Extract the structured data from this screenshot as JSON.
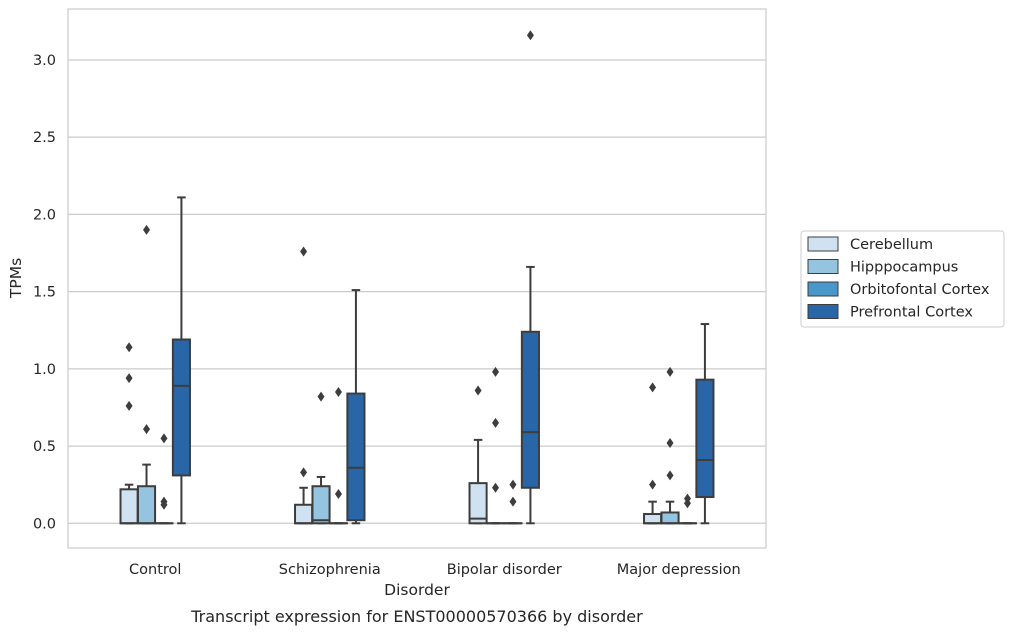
{
  "chart_data": {
    "type": "box",
    "xlabel": "Disorder",
    "ylabel": "TPMs",
    "caption": "Transcript expression for ENST00000570366 by disorder",
    "ylim": [
      -0.16,
      3.33
    ],
    "yticks": [
      0.0,
      0.5,
      1.0,
      1.5,
      2.0,
      2.5,
      3.0
    ],
    "ytick_labels": [
      "0.0",
      "0.5",
      "1.0",
      "1.5",
      "2.0",
      "2.5",
      "3.0"
    ],
    "grid": "horizontal",
    "legend_position": "right",
    "categories": [
      "Control",
      "Schizophrenia",
      "Bipolar disorder",
      "Major depression"
    ],
    "series": [
      {
        "name": "Cerebellum",
        "color": "#d0e1f2",
        "boxes": [
          {
            "q1": 0.0,
            "median": 0.0,
            "q3": 0.22,
            "whislo": 0.0,
            "whishi": 0.25,
            "fliers": [
              1.14,
              0.94,
              0.76
            ]
          },
          {
            "q1": 0.0,
            "median": 0.0,
            "q3": 0.12,
            "whislo": 0.0,
            "whishi": 0.23,
            "fliers": [
              1.76,
              0.33
            ]
          },
          {
            "q1": 0.0,
            "median": 0.03,
            "q3": 0.26,
            "whislo": 0.0,
            "whishi": 0.54,
            "fliers": [
              0.86
            ]
          },
          {
            "q1": 0.0,
            "median": 0.0,
            "q3": 0.06,
            "whislo": 0.0,
            "whishi": 0.14,
            "fliers": [
              0.88,
              0.25
            ]
          }
        ]
      },
      {
        "name": "Hipppocampus",
        "color": "#94c4df",
        "boxes": [
          {
            "q1": 0.0,
            "median": 0.0,
            "q3": 0.24,
            "whislo": 0.0,
            "whishi": 0.38,
            "fliers": [
              1.9,
              0.61
            ]
          },
          {
            "q1": 0.0,
            "median": 0.02,
            "q3": 0.24,
            "whislo": 0.0,
            "whishi": 0.3,
            "fliers": [
              0.82
            ]
          },
          {
            "q1": 0.0,
            "median": 0.0,
            "q3": 0.0,
            "whislo": 0.0,
            "whishi": 0.0,
            "fliers": [
              0.98,
              0.65,
              0.23
            ]
          },
          {
            "q1": 0.0,
            "median": 0.0,
            "q3": 0.07,
            "whislo": 0.0,
            "whishi": 0.14,
            "fliers": [
              0.98,
              0.52,
              0.31
            ]
          }
        ]
      },
      {
        "name": "Orbitofontal Cortex",
        "color": "#4a98c9",
        "boxes": [
          {
            "q1": 0.0,
            "median": 0.0,
            "q3": 0.0,
            "whislo": 0.0,
            "whishi": 0.0,
            "fliers": [
              0.55,
              0.14,
              0.12
            ]
          },
          {
            "q1": 0.0,
            "median": 0.0,
            "q3": 0.0,
            "whislo": 0.0,
            "whishi": 0.0,
            "fliers": [
              0.85,
              0.19
            ]
          },
          {
            "q1": 0.0,
            "median": 0.0,
            "q3": 0.0,
            "whislo": 0.0,
            "whishi": 0.0,
            "fliers": [
              0.25,
              0.14
            ]
          },
          {
            "q1": 0.0,
            "median": 0.0,
            "q3": 0.0,
            "whislo": 0.0,
            "whishi": 0.0,
            "fliers": [
              0.16,
              0.13
            ]
          }
        ]
      },
      {
        "name": "Prefrontal Cortex",
        "color": "#2866a8",
        "boxes": [
          {
            "q1": 0.31,
            "median": 0.89,
            "q3": 1.19,
            "whislo": 0.0,
            "whishi": 2.11,
            "fliers": []
          },
          {
            "q1": 0.02,
            "median": 0.36,
            "q3": 0.84,
            "whislo": 0.0,
            "whishi": 1.51,
            "fliers": []
          },
          {
            "q1": 0.23,
            "median": 0.59,
            "q3": 1.24,
            "whislo": 0.0,
            "whishi": 1.66,
            "fliers": [
              3.16
            ]
          },
          {
            "q1": 0.17,
            "median": 0.41,
            "q3": 0.93,
            "whislo": 0.0,
            "whishi": 1.29,
            "fliers": []
          }
        ]
      }
    ]
  }
}
